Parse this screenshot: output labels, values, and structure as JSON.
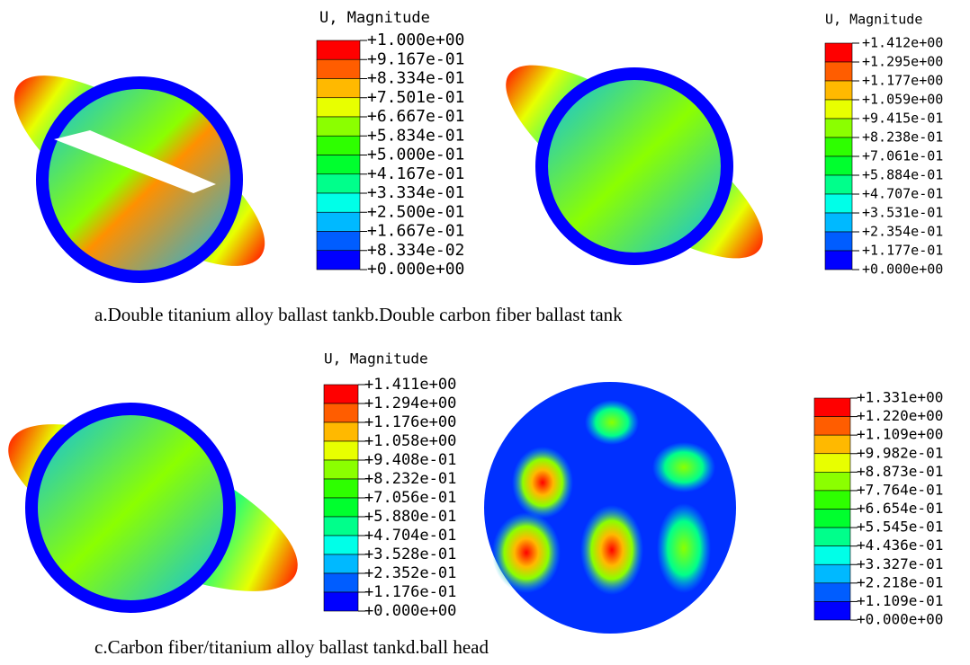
{
  "colormap": [
    "#0000ff",
    "#005dff",
    "#00b9ff",
    "#00ffe8",
    "#00ff8b",
    "#00ff2e",
    "#2eff00",
    "#8bff00",
    "#e8ff00",
    "#ffb900",
    "#ff5d00",
    "#ff0000"
  ],
  "panels": [
    {
      "legend_title": "U, Magnitude",
      "legend_labels": [
        "+1.000e+00",
        "+9.167e-01",
        "+8.334e-01",
        "+7.501e-01",
        "+6.667e-01",
        "+5.834e-01",
        "+5.000e-01",
        "+4.167e-01",
        "+3.334e-01",
        "+2.500e-01",
        "+1.667e-01",
        "+8.334e-02",
        "+0.000e+00"
      ],
      "caption": "a.Double titanium alloy ballast tank"
    },
    {
      "legend_title": "U, Magnitude",
      "legend_labels": [
        "+1.412e+00",
        "+1.295e+00",
        "+1.177e+00",
        "+1.059e+00",
        "+9.415e-01",
        "+8.238e-01",
        "+7.061e-01",
        "+5.884e-01",
        "+4.707e-01",
        "+3.531e-01",
        "+2.354e-01",
        "+1.177e-01",
        "+0.000e+00"
      ],
      "caption": "b.Double carbon fiber ballast tank"
    },
    {
      "legend_title": "U, Magnitude",
      "legend_labels": [
        "+1.411e+00",
        "+1.294e+00",
        "+1.176e+00",
        "+1.058e+00",
        "+9.408e-01",
        "+8.232e-01",
        "+7.056e-01",
        "+5.880e-01",
        "+4.704e-01",
        "+3.528e-01",
        "+2.352e-01",
        "+1.176e-01",
        "+0.000e+00"
      ],
      "caption": "c.Carbon fiber/titanium alloy ballast tank"
    },
    {
      "legend_labels": [
        "+1.331e+00",
        "+1.220e+00",
        "+1.109e+00",
        "+9.982e-01",
        "+8.873e-01",
        "+7.764e-01",
        "+6.654e-01",
        "+5.545e-01",
        "+4.436e-01",
        "+3.327e-01",
        "+2.218e-01",
        "+1.109e-01",
        "+0.000e+00"
      ],
      "caption": "d.ball head"
    }
  ]
}
